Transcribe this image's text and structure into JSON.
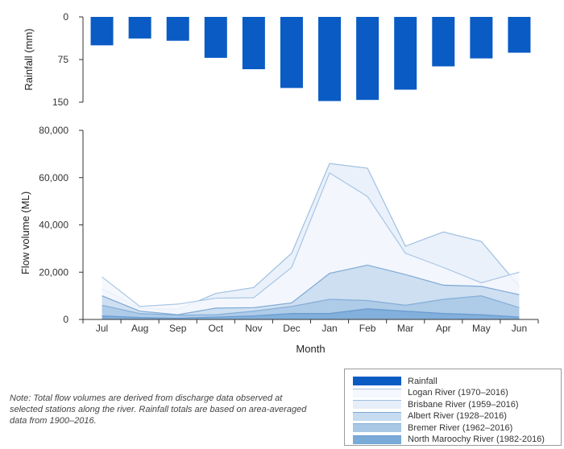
{
  "chart_data": [
    {
      "type": "bar",
      "title": "",
      "ylabel": "Rainfall (mm)",
      "ylim": [
        0,
        150
      ],
      "yticks": [
        "0",
        "75",
        "150"
      ],
      "inverted": true,
      "categories": [
        "Jul",
        "Aug",
        "Sep",
        "Oct",
        "Nov",
        "Dec",
        "Jan",
        "Feb",
        "Mar",
        "Apr",
        "May",
        "Jun"
      ],
      "series": [
        {
          "name": "Rainfall",
          "color": "#0a5bc4",
          "values": [
            50,
            38,
            42,
            72,
            92,
            125,
            148,
            146,
            128,
            87,
            73,
            63
          ]
        }
      ]
    },
    {
      "type": "area",
      "title": "",
      "xlabel": "Month",
      "ylabel": "Flow volume (ML)",
      "ylim": [
        0,
        80000
      ],
      "yticks": [
        "0",
        "20,000",
        "40,000",
        "60,000",
        "80,000"
      ],
      "categories": [
        "Jul",
        "Aug",
        "Sep",
        "Oct",
        "Nov",
        "Dec",
        "Jan",
        "Feb",
        "Mar",
        "Apr",
        "May",
        "Jun"
      ],
      "series": [
        {
          "name": "Logan River (1970–2016)",
          "color": "#f4f7fd",
          "line": "#a9c6e4",
          "values": [
            18000,
            5500,
            6500,
            9000,
            9200,
            22000,
            62000,
            52000,
            28000,
            22000,
            15500,
            20000
          ]
        },
        {
          "name": "Brisbane River (1959–2016)",
          "color": "#e6eef9",
          "line": "#9fc0e1",
          "values": [
            13000,
            4800,
            4200,
            11000,
            13500,
            28000,
            66000,
            64000,
            31000,
            37000,
            33000,
            14000
          ]
        },
        {
          "name": "Albert River (1928–2016)",
          "color": "#c6dbef",
          "line": "#7fa9d3",
          "values": [
            10000,
            3500,
            2000,
            4800,
            5000,
            7000,
            19500,
            23000,
            19000,
            14500,
            14000,
            10500
          ]
        },
        {
          "name": "Bremer River (1962–2016)",
          "color": "#a8c8e6",
          "line": "#85aed7",
          "values": [
            6000,
            2500,
            1800,
            2000,
            3500,
            5500,
            8500,
            8000,
            6000,
            8500,
            10000,
            5000
          ]
        },
        {
          "name": "North Maroochy River (1982-2016)",
          "color": "#7aaad8",
          "line": "#6a9bcf",
          "values": [
            1500,
            800,
            500,
            1000,
            1500,
            2500,
            2500,
            4500,
            3500,
            2500,
            2000,
            1000
          ]
        }
      ]
    }
  ],
  "legend": [
    {
      "label": "Rainfall",
      "color": "#0a5bc4",
      "kind": "bar"
    },
    {
      "label": "Logan River (1970–2016)",
      "color": "#f4f7fd",
      "kind": "area",
      "line": "#a9c6e4"
    },
    {
      "label": "Brisbane River (1959–2016)",
      "color": "#e6eef9",
      "kind": "area",
      "line": "#9fc0e1"
    },
    {
      "label": "Albert River (1928–2016)",
      "color": "#c6dbef",
      "kind": "area",
      "line": "#7fa9d3"
    },
    {
      "label": "Bremer River (1962–2016)",
      "color": "#a8c8e6",
      "kind": "area",
      "line": "#85aed7"
    },
    {
      "label": "North Maroochy River (1982-2016)",
      "color": "#7aaad8",
      "kind": "area",
      "line": "#6a9bcf"
    }
  ],
  "note": "Note: Total flow volumes are derived from discharge data observed at selected stations along the river. Rainfall totals are based on area-averaged data from 1900–2016."
}
